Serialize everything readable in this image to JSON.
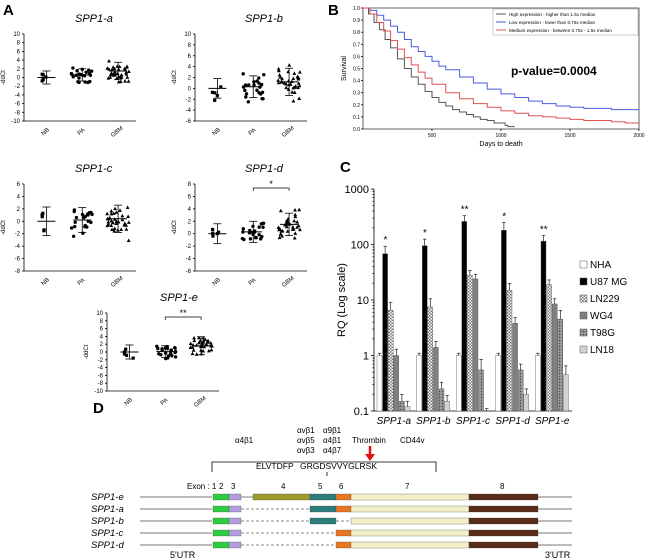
{
  "panel_labels": [
    "A",
    "B",
    "C",
    "D"
  ],
  "chart_data": [
    {
      "type": "scatter",
      "panel": "A",
      "subplots": [
        {
          "title": "SPP1-a",
          "ylabel": "-ddCt",
          "ylim": [
            -10,
            10
          ],
          "yticks": [
            -10,
            -8,
            -6,
            -4,
            -2,
            0,
            2,
            4,
            6,
            8,
            10
          ],
          "categories": [
            "NB",
            "PA",
            "GBM"
          ],
          "means": [
            0.0,
            0.6,
            1.5
          ],
          "sd": [
            1.5,
            1.4,
            2.0
          ],
          "n": [
            5,
            22,
            36
          ],
          "sig": []
        },
        {
          "title": "SPP1-b",
          "ylabel": "-ddCt",
          "ylim": [
            -6,
            10
          ],
          "yticks": [
            -6,
            -4,
            -2,
            0,
            2,
            4,
            6,
            8,
            10
          ],
          "categories": [
            "NB",
            "PA",
            "GBM"
          ],
          "means": [
            0.0,
            0.3,
            1.2
          ],
          "sd": [
            1.8,
            2.0,
            2.5
          ],
          "n": [
            5,
            22,
            36
          ],
          "sig": []
        },
        {
          "title": "SPP1-c",
          "ylabel": "-ddCt",
          "ylim": [
            -8,
            6
          ],
          "yticks": [
            -8,
            -6,
            -4,
            -2,
            0,
            2,
            4,
            6
          ],
          "categories": [
            "NB",
            "PA",
            "GBM"
          ],
          "means": [
            0.0,
            0.2,
            0.4
          ],
          "sd": [
            2.3,
            2.0,
            2.2
          ],
          "n": [
            5,
            22,
            36
          ],
          "sig": []
        },
        {
          "title": "SPP1-d",
          "ylabel": "-ddCt",
          "ylim": [
            -6,
            8
          ],
          "yticks": [
            -6,
            -4,
            -2,
            0,
            2,
            4,
            6,
            8
          ],
          "categories": [
            "NB",
            "PA",
            "GBM"
          ],
          "means": [
            0.0,
            0.3,
            1.5
          ],
          "sd": [
            1.6,
            1.7,
            1.8
          ],
          "n": [
            5,
            22,
            36
          ],
          "sig": [
            {
              "from": "PA",
              "to": "GBM",
              "label": "*"
            }
          ]
        },
        {
          "title": "SPP1-e",
          "ylabel": "-ddCt",
          "ylim": [
            -10,
            10
          ],
          "yticks": [
            -10,
            -8,
            -6,
            -4,
            -2,
            0,
            2,
            4,
            6,
            8,
            10
          ],
          "categories": [
            "NB",
            "PA",
            "GBM"
          ],
          "means": [
            0.0,
            0.1,
            1.6
          ],
          "sd": [
            1.8,
            1.5,
            2.3
          ],
          "n": [
            5,
            22,
            36
          ],
          "sig": [
            {
              "from": "PA",
              "to": "GBM",
              "label": "**"
            }
          ]
        }
      ]
    },
    {
      "type": "line",
      "panel": "B",
      "xlabel": "Days to death",
      "ylabel": "Survival",
      "xlim": [
        0,
        2000
      ],
      "ylim": [
        0,
        1
      ],
      "xticks": [
        500,
        1000,
        1500,
        2000
      ],
      "yticks": [
        0.0,
        0.1,
        0.2,
        0.3,
        0.4,
        0.5,
        0.6,
        0.7,
        0.8,
        0.9,
        1.0
      ],
      "annotation": "p-value=0.0004",
      "series": [
        {
          "name": "High expression - higher than 1.5x median",
          "color": "#555555",
          "x": [
            0,
            40,
            80,
            120,
            160,
            200,
            250,
            300,
            350,
            400,
            450,
            500,
            550,
            600,
            650,
            700,
            750,
            800,
            850,
            900,
            950,
            1000,
            1030,
            1050,
            1100
          ],
          "y": [
            1.0,
            0.95,
            0.88,
            0.82,
            0.74,
            0.67,
            0.58,
            0.5,
            0.43,
            0.37,
            0.31,
            0.26,
            0.22,
            0.19,
            0.16,
            0.14,
            0.12,
            0.1,
            0.08,
            0.07,
            0.05,
            0.05,
            0.03,
            0.02,
            0.02
          ]
        },
        {
          "name": "Low expression - lower than 0.75x median",
          "color": "#4a5be0",
          "x": [
            0,
            50,
            100,
            150,
            200,
            250,
            300,
            350,
            400,
            450,
            500,
            550,
            600,
            700,
            800,
            900,
            1000,
            1100,
            1200,
            1300,
            1400,
            1500,
            1600,
            1700,
            1800,
            1900,
            2000
          ],
          "y": [
            1.0,
            0.98,
            0.94,
            0.9,
            0.85,
            0.8,
            0.74,
            0.68,
            0.64,
            0.6,
            0.56,
            0.52,
            0.49,
            0.43,
            0.38,
            0.33,
            0.29,
            0.26,
            0.23,
            0.21,
            0.19,
            0.18,
            0.17,
            0.17,
            0.16,
            0.16,
            0.16
          ]
        },
        {
          "name": "Medium expression - between 0.75x - 1.5x median",
          "color": "#e05050",
          "x": [
            0,
            50,
            100,
            150,
            200,
            250,
            300,
            350,
            400,
            450,
            500,
            600,
            700,
            800,
            900,
            1000,
            1100,
            1200,
            1300,
            1400,
            1500,
            1600,
            1700,
            1800,
            1900,
            2000
          ],
          "y": [
            1.0,
            0.95,
            0.88,
            0.81,
            0.73,
            0.66,
            0.59,
            0.53,
            0.47,
            0.42,
            0.37,
            0.3,
            0.25,
            0.21,
            0.18,
            0.15,
            0.13,
            0.11,
            0.1,
            0.09,
            0.08,
            0.07,
            0.07,
            0.06,
            0.05,
            0.05
          ]
        }
      ]
    },
    {
      "type": "bar",
      "panel": "C",
      "ylabel": "RQ (Log scale)",
      "yscale": "log",
      "ylim": [
        0.1,
        1000
      ],
      "yticks": [
        0.1,
        1,
        10,
        100,
        1000
      ],
      "ytick_labels": [
        "0.1",
        "1",
        "10",
        "100",
        "1000"
      ],
      "categories": [
        "SPP1-a",
        "SPP1-b",
        "SPP1-c",
        "SPP1-d",
        "SPP1-e"
      ],
      "series": [
        {
          "name": "NHA",
          "fill": "#ffffff",
          "values": [
            1,
            1,
            1,
            1,
            1
          ]
        },
        {
          "name": "U87 MG",
          "fill": "#000000",
          "values": [
            68,
            95,
            260,
            180,
            115
          ]
        },
        {
          "name": "LN229",
          "fill": "pat-check",
          "values": [
            6.5,
            7.5,
            28,
            15,
            19
          ]
        },
        {
          "name": "WG4",
          "fill": "#808080",
          "values": [
            1.0,
            1.4,
            24,
            3.8,
            8.5
          ]
        },
        {
          "name": "T98G",
          "fill": "pat-dot",
          "values": [
            0.15,
            0.25,
            0.55,
            0.55,
            4.5
          ]
        },
        {
          "name": "LN18",
          "fill": "#d3d3d3",
          "values": [
            0.12,
            0.15,
            0.09,
            0.2,
            0.45
          ]
        }
      ],
      "errors": [
        [
          0.1,
          0.1,
          0.1,
          0.1,
          0.1
        ],
        [
          25,
          30,
          70,
          70,
          30
        ],
        [
          2.5,
          3,
          6,
          5,
          4
        ],
        [
          0.3,
          0.4,
          5,
          1,
          2
        ],
        [
          0.05,
          0.08,
          0.3,
          0.15,
          2
        ],
        [
          0.03,
          0.04,
          0.02,
          0.05,
          0.2
        ]
      ],
      "annotations": [
        "*",
        "*",
        "**",
        "*",
        "**"
      ]
    }
  ],
  "panel_d": {
    "motif_groups": [
      {
        "lines": [
          "α4β1"
        ]
      },
      {
        "lines": [
          "αvβ1",
          "αvβ5",
          "αvβ3"
        ]
      },
      {
        "lines": [
          "α9β1",
          "α4β1",
          "α4β7"
        ]
      },
      {
        "lines": [
          "Thrombin"
        ]
      },
      {
        "lines": [
          "CD44v"
        ]
      }
    ],
    "seq_left": "ELVTDFP",
    "seq_right": "GRGDSVVYGLRSK",
    "exon_label": "Exon : 1",
    "exon_numbers": [
      "2",
      "3",
      "4",
      "5",
      "6",
      "7",
      "8"
    ],
    "isoforms": [
      "SPP1-e",
      "SPP1-a",
      "SPP1-b",
      "SPP1-c",
      "SPP1-d"
    ],
    "utr5": "5'UTR",
    "utr3": "3'UTR",
    "exon_colors": {
      "e2": "#2ecc40",
      "e3": "#b39ddb",
      "e4": "#9c9a2b",
      "e5": "#2e7d7d",
      "e6": "#e87722",
      "e7": "#f3efc6",
      "e8": "#5a2d1a"
    }
  }
}
